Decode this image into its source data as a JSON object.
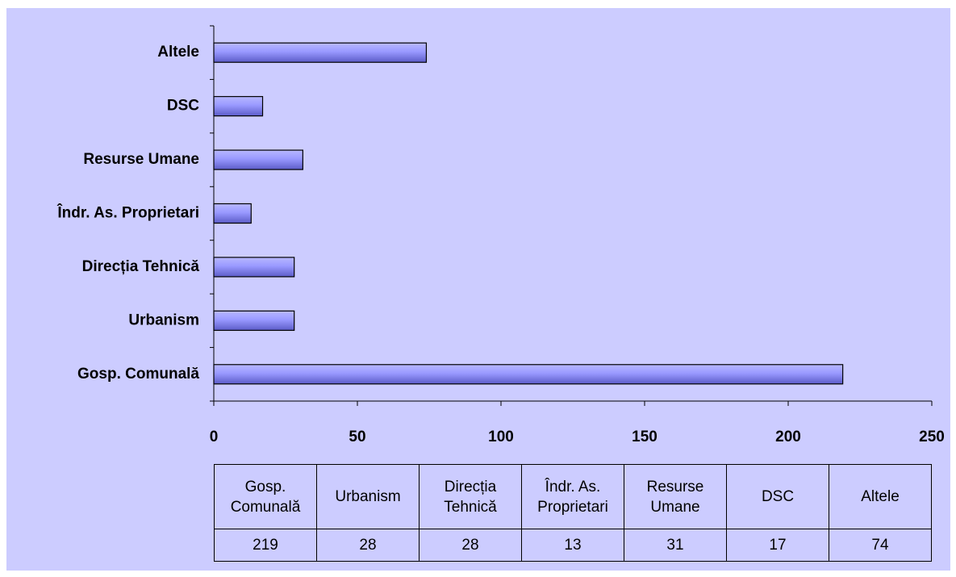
{
  "chart_data": {
    "type": "bar",
    "orientation": "horizontal",
    "categories": [
      "Gosp. Comunală",
      "Urbanism",
      "Direcția Tehnică",
      "Îndr. As. Proprietari",
      "Resurse Umane",
      "DSC",
      "Altele"
    ],
    "values": [
      219,
      28,
      28,
      13,
      31,
      17,
      74
    ],
    "color": "#9999ff",
    "xlim": [
      0,
      250
    ],
    "xticks": [
      0,
      50,
      100,
      150,
      200,
      250
    ],
    "data_table": true
  }
}
